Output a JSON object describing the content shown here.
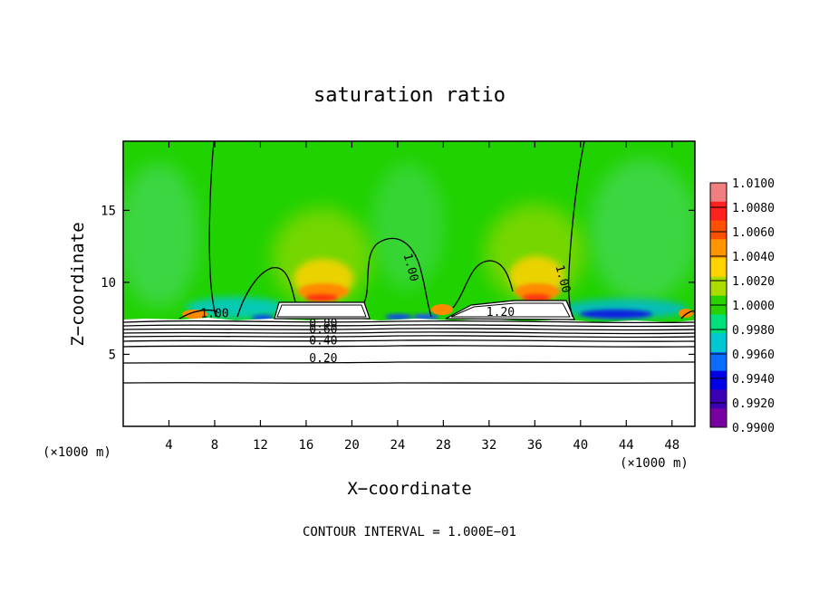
{
  "chart_data": {
    "type": "heatmap",
    "title": "saturation ratio",
    "xlabel": "X−coordinate",
    "ylabel": "Z−coordinate",
    "x_unit_left": "(×1000 m)",
    "x_unit_right": "(×1000 m)",
    "footer": "CONTOUR INTERVAL = 1.000E−01",
    "xlim": [
      0,
      50
    ],
    "ylim": [
      0,
      19.8
    ],
    "x_ticks": [
      4,
      8,
      12,
      16,
      20,
      24,
      28,
      32,
      36,
      40,
      44,
      48
    ],
    "y_ticks": [
      5,
      10,
      15
    ],
    "contour_labels": [
      {
        "text": "1.00",
        "x": 8.0,
        "z": 7.7
      },
      {
        "text": "1.00",
        "x": 25.0,
        "z": 11.0
      },
      {
        "text": "1.00",
        "x": 38.3,
        "z": 10.2
      },
      {
        "text": "1.20",
        "x": 33.0,
        "z": 7.8
      },
      {
        "text": "0.80",
        "x": 17.5,
        "z": 7.0
      },
      {
        "text": "0.60",
        "x": 17.5,
        "z": 6.6
      },
      {
        "text": "0.40",
        "x": 17.5,
        "z": 5.8
      },
      {
        "text": "0.20",
        "x": 17.5,
        "z": 4.6
      }
    ],
    "colorbar": {
      "min": 0.99,
      "max": 1.01,
      "tick_labels": [
        "1.0100",
        "1.0080",
        "1.0060",
        "1.0040",
        "1.0020",
        "1.0000",
        "0.9980",
        "0.9960",
        "0.9940",
        "0.9920",
        "0.9900"
      ],
      "colors": [
        "#f08080",
        "#ff2020",
        "#ff5000",
        "#ff9600",
        "#ffd200",
        "#aadc00",
        "#28d200",
        "#00e07a",
        "#00c8d2",
        "#0a6cff",
        "#0000e6",
        "#3c00b4",
        "#7800a0"
      ]
    },
    "background_value": 1.0,
    "grid": false
  }
}
